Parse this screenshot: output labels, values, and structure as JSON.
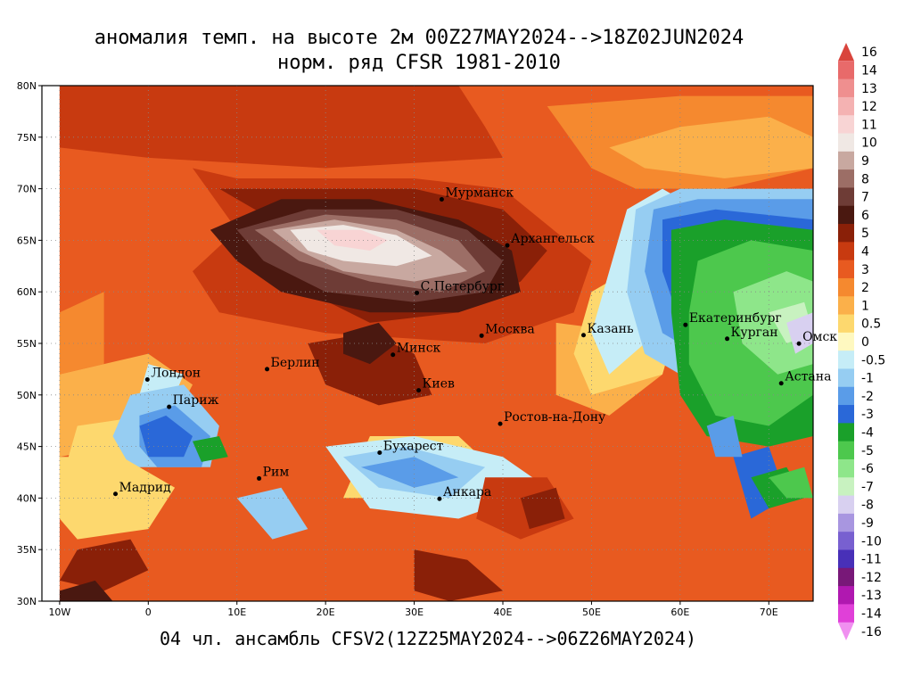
{
  "title_line1": "аномалия темп. на высоте 2м 00Z27MAY2024-->18Z02JUN2024",
  "title_line2": "норм. ряд CFSR 1981-2010",
  "footer": "04 чл. ансамбль CFSV2(12Z25MAY2024-->06Z26MAY2024)",
  "lat_labels": [
    "80N",
    "75N",
    "70N",
    "65N",
    "60N",
    "55N",
    "50N",
    "45N",
    "40N",
    "35N",
    "30N"
  ],
  "lon_labels": [
    "10W",
    "0",
    "10E",
    "20E",
    "30E",
    "40E",
    "50E",
    "60E",
    "70E"
  ],
  "cities": [
    {
      "name": "Мурманск",
      "lon": 33.1,
      "lat": 68.97
    },
    {
      "name": "Архангельск",
      "lon": 40.5,
      "lat": 64.5
    },
    {
      "name": "С.Петербург",
      "lon": 30.3,
      "lat": 59.9
    },
    {
      "name": "Москва",
      "lon": 37.6,
      "lat": 55.75
    },
    {
      "name": "Казань",
      "lon": 49.1,
      "lat": 55.8
    },
    {
      "name": "Екатеринбург",
      "lon": 60.6,
      "lat": 56.8
    },
    {
      "name": "Курган",
      "lon": 65.3,
      "lat": 55.45
    },
    {
      "name": "Омск",
      "lon": 73.4,
      "lat": 54.98
    },
    {
      "name": "Астана",
      "lon": 71.4,
      "lat": 51.13
    },
    {
      "name": "Минск",
      "lon": 27.6,
      "lat": 53.9
    },
    {
      "name": "Берлин",
      "lon": 13.4,
      "lat": 52.5
    },
    {
      "name": "Лондон",
      "lon": -0.1,
      "lat": 51.5
    },
    {
      "name": "Париж",
      "lon": 2.35,
      "lat": 48.85
    },
    {
      "name": "Киев",
      "lon": 30.5,
      "lat": 50.45
    },
    {
      "name": "Ростов-на-Дону",
      "lon": 39.7,
      "lat": 47.2
    },
    {
      "name": "Бухарест",
      "lon": 26.1,
      "lat": 44.4
    },
    {
      "name": "Мадрид",
      "lon": -3.7,
      "lat": 40.4
    },
    {
      "name": "Рим",
      "lon": 12.5,
      "lat": 41.9
    },
    {
      "name": "Анкара",
      "lon": 32.85,
      "lat": 39.93
    }
  ],
  "colorbar": {
    "labels": [
      "16",
      "14",
      "13",
      "12",
      "11",
      "10",
      "9",
      "8",
      "7",
      "6",
      "5",
      "4",
      "3",
      "2",
      "1",
      "0.5",
      "0",
      "-0.5",
      "-1",
      "-2",
      "-3",
      "-4",
      "-5",
      "-6",
      "-7",
      "-8",
      "-9",
      "-10",
      "-11",
      "-12",
      "-13",
      "-14",
      "-16"
    ],
    "colors": [
      "#d9443c",
      "#e86a6a",
      "#ef8f8f",
      "#f4b2b2",
      "#f8d4d4",
      "#f0e8e4",
      "#c8a8a0",
      "#9c6e66",
      "#6e3c36",
      "#4a1810",
      "#8a2008",
      "#c83a10",
      "#e85a20",
      "#f5892f",
      "#fbb04a",
      "#fdd86e",
      "#fef8c0",
      "#c6edf7",
      "#96cdf2",
      "#5a9ce8",
      "#2a68d8",
      "#1aa02a",
      "#4dc84d",
      "#8ee68a",
      "#c8f2c0",
      "#d8d0f0",
      "#a896e0",
      "#7860d0",
      "#4830b8",
      "#781878",
      "#b018b0",
      "#e040d8",
      "#f090f0"
    ]
  },
  "regions": [
    {
      "value": 3,
      "points": [
        [
          -10,
          80
        ],
        [
          75,
          80
        ],
        [
          75,
          30
        ],
        [
          -10,
          30
        ]
      ]
    },
    {
      "value": 4,
      "points": [
        [
          -10,
          80
        ],
        [
          35,
          80
        ],
        [
          38,
          76
        ],
        [
          40,
          73
        ],
        [
          20,
          72
        ],
        [
          0,
          73
        ],
        [
          -10,
          74
        ]
      ]
    },
    {
      "value": 4,
      "points": [
        [
          5,
          72
        ],
        [
          10,
          66
        ],
        [
          5,
          62
        ],
        [
          8,
          58
        ],
        [
          20,
          56
        ],
        [
          38,
          55
        ],
        [
          48,
          58
        ],
        [
          50,
          63
        ],
        [
          40,
          70
        ],
        [
          30,
          71
        ],
        [
          20,
          71
        ],
        [
          10,
          71
        ]
      ]
    },
    {
      "value": 5,
      "points": [
        [
          8,
          70
        ],
        [
          14,
          67
        ],
        [
          18,
          60
        ],
        [
          25,
          57
        ],
        [
          35,
          58
        ],
        [
          42,
          61
        ],
        [
          45,
          64
        ],
        [
          40,
          68
        ],
        [
          30,
          70
        ],
        [
          20,
          70
        ]
      ]
    },
    {
      "value": 2,
      "points": [
        [
          -10,
          58
        ],
        [
          -5,
          60
        ],
        [
          -5,
          53
        ],
        [
          -10,
          52
        ]
      ]
    },
    {
      "value": 2,
      "points": [
        [
          45,
          78
        ],
        [
          60,
          79
        ],
        [
          75,
          79
        ],
        [
          75,
          72
        ],
        [
          65,
          70
        ],
        [
          55,
          70
        ],
        [
          50,
          72
        ]
      ]
    },
    {
      "value": 1,
      "points": [
        [
          52,
          74
        ],
        [
          60,
          76
        ],
        [
          70,
          77
        ],
        [
          75,
          75
        ],
        [
          75,
          72
        ],
        [
          65,
          71
        ],
        [
          56,
          72
        ]
      ]
    },
    {
      "value": 1,
      "points": [
        [
          -10,
          52
        ],
        [
          0,
          54
        ],
        [
          5,
          51
        ],
        [
          2,
          46
        ],
        [
          -10,
          44
        ]
      ]
    },
    {
      "value": 0.5,
      "points": [
        [
          -8,
          47
        ],
        [
          0,
          48
        ],
        [
          3,
          44
        ],
        [
          -5,
          42
        ],
        [
          -9,
          44
        ]
      ]
    },
    {
      "value": -0.5,
      "points": [
        [
          0,
          53
        ],
        [
          4,
          52
        ],
        [
          3,
          50
        ],
        [
          -1,
          50
        ]
      ]
    },
    {
      "value": -1,
      "points": [
        [
          -2,
          50
        ],
        [
          4,
          51
        ],
        [
          8,
          47
        ],
        [
          7,
          43
        ],
        [
          -2,
          43
        ],
        [
          -4,
          46
        ]
      ]
    },
    {
      "value": -2,
      "points": [
        [
          -1,
          48
        ],
        [
          3,
          49
        ],
        [
          7,
          46
        ],
        [
          6,
          43
        ],
        [
          1,
          43
        ],
        [
          -1,
          45
        ]
      ]
    },
    {
      "value": -3,
      "points": [
        [
          -1,
          47
        ],
        [
          2,
          48
        ],
        [
          5,
          46
        ],
        [
          4,
          44
        ],
        [
          0,
          44
        ]
      ]
    },
    {
      "value": -4,
      "points": [
        [
          5,
          45.5
        ],
        [
          8,
          46
        ],
        [
          9,
          44
        ],
        [
          6,
          43.5
        ]
      ]
    },
    {
      "value": 0.5,
      "points": [
        [
          25,
          46
        ],
        [
          35,
          46
        ],
        [
          40,
          42
        ],
        [
          30,
          40
        ],
        [
          22,
          40
        ]
      ]
    },
    {
      "value": -0.5,
      "points": [
        [
          20,
          45
        ],
        [
          30,
          46
        ],
        [
          40,
          44
        ],
        [
          45,
          41
        ],
        [
          35,
          38
        ],
        [
          25,
          39
        ]
      ]
    },
    {
      "value": -1,
      "points": [
        [
          22,
          44
        ],
        [
          29,
          45
        ],
        [
          38,
          43
        ],
        [
          34,
          40
        ],
        [
          26,
          41
        ]
      ]
    },
    {
      "value": -2,
      "points": [
        [
          24,
          43
        ],
        [
          30,
          44
        ],
        [
          35,
          42
        ],
        [
          30,
          41
        ]
      ]
    },
    {
      "value": -1,
      "points": [
        [
          10,
          40
        ],
        [
          15,
          41
        ],
        [
          18,
          37
        ],
        [
          14,
          36
        ]
      ]
    },
    {
      "value": 0.5,
      "points": [
        [
          -10,
          44
        ],
        [
          -3,
          44
        ],
        [
          3,
          41
        ],
        [
          0,
          37
        ],
        [
          -8,
          36
        ],
        [
          -10,
          38
        ]
      ]
    },
    {
      "value": 1,
      "points": [
        [
          46,
          57
        ],
        [
          55,
          56
        ],
        [
          58,
          52
        ],
        [
          52,
          48
        ],
        [
          46,
          50
        ]
      ]
    },
    {
      "value": 0.5,
      "points": [
        [
          50,
          60
        ],
        [
          58,
          64
        ],
        [
          60,
          58
        ],
        [
          58,
          52
        ],
        [
          50,
          50
        ],
        [
          48,
          54
        ]
      ]
    },
    {
      "value": -0.5,
      "points": [
        [
          54,
          68
        ],
        [
          58,
          70
        ],
        [
          62,
          68
        ],
        [
          60,
          60
        ],
        [
          56,
          55
        ],
        [
          52,
          52
        ],
        [
          50,
          56
        ],
        [
          52,
          62
        ]
      ]
    },
    {
      "value": -1,
      "points": [
        [
          55,
          68
        ],
        [
          60,
          70
        ],
        [
          75,
          70
        ],
        [
          75,
          58
        ],
        [
          68,
          56
        ],
        [
          60,
          52
        ],
        [
          56,
          54
        ],
        [
          54,
          60
        ]
      ]
    },
    {
      "value": -2,
      "points": [
        [
          57,
          68
        ],
        [
          62,
          69
        ],
        [
          75,
          69
        ],
        [
          75,
          59
        ],
        [
          70,
          57
        ],
        [
          62,
          54
        ],
        [
          58,
          56
        ],
        [
          56,
          62
        ]
      ]
    },
    {
      "value": -3,
      "points": [
        [
          58,
          67
        ],
        [
          64,
          68
        ],
        [
          75,
          67
        ],
        [
          75,
          60
        ],
        [
          70,
          58
        ],
        [
          64,
          55
        ],
        [
          60,
          57
        ],
        [
          58,
          62
        ]
      ]
    },
    {
      "value": -4,
      "points": [
        [
          59,
          66
        ],
        [
          65,
          67
        ],
        [
          75,
          66
        ],
        [
          75,
          46
        ],
        [
          70,
          45
        ],
        [
          63,
          46
        ],
        [
          60,
          50
        ],
        [
          59,
          58
        ]
      ]
    },
    {
      "value": -5,
      "points": [
        [
          62,
          63
        ],
        [
          68,
          65
        ],
        [
          75,
          64
        ],
        [
          75,
          50
        ],
        [
          70,
          47
        ],
        [
          64,
          48
        ],
        [
          61,
          53
        ],
        [
          61,
          58
        ]
      ]
    },
    {
      "value": -6,
      "points": [
        [
          66,
          60
        ],
        [
          72,
          62
        ],
        [
          75,
          61
        ],
        [
          75,
          53
        ],
        [
          71,
          52
        ],
        [
          67,
          55
        ]
      ]
    },
    {
      "value": -7,
      "points": [
        [
          70,
          58
        ],
        [
          74,
          59
        ],
        [
          75,
          56
        ],
        [
          72,
          55
        ]
      ]
    },
    {
      "value": -8,
      "points": [
        [
          72,
          57
        ],
        [
          75,
          58
        ],
        [
          75,
          55
        ],
        [
          73,
          54
        ]
      ]
    },
    {
      "value": -3,
      "points": [
        [
          66,
          44
        ],
        [
          70,
          45
        ],
        [
          72,
          40
        ],
        [
          68,
          38
        ]
      ]
    },
    {
      "value": -4,
      "points": [
        [
          68,
          42
        ],
        [
          72,
          43
        ],
        [
          74,
          40
        ],
        [
          70,
          39
        ]
      ]
    },
    {
      "value": -5,
      "points": [
        [
          70,
          42
        ],
        [
          74,
          43
        ],
        [
          75,
          40
        ],
        [
          72,
          40
        ]
      ]
    },
    {
      "value": -2,
      "points": [
        [
          63,
          47
        ],
        [
          66,
          48
        ],
        [
          67,
          44
        ],
        [
          64,
          44
        ]
      ]
    },
    {
      "value": 6,
      "points": [
        [
          7,
          66
        ],
        [
          15,
          69
        ],
        [
          25,
          69
        ],
        [
          35,
          67
        ],
        [
          41,
          64
        ],
        [
          42,
          60
        ],
        [
          35,
          58
        ],
        [
          25,
          58
        ],
        [
          15,
          60
        ],
        [
          10,
          63
        ]
      ]
    },
    {
      "value": 7,
      "points": [
        [
          10,
          66
        ],
        [
          18,
          68
        ],
        [
          28,
          68
        ],
        [
          36,
          66
        ],
        [
          40,
          63
        ],
        [
          38,
          60
        ],
        [
          30,
          59
        ],
        [
          20,
          60
        ],
        [
          13,
          63
        ]
      ]
    },
    {
      "value": 8,
      "points": [
        [
          12,
          66
        ],
        [
          20,
          67.5
        ],
        [
          28,
          67
        ],
        [
          35,
          65
        ],
        [
          38,
          62
        ],
        [
          33,
          60
        ],
        [
          25,
          61
        ],
        [
          17,
          63
        ]
      ]
    },
    {
      "value": 9,
      "points": [
        [
          14,
          66
        ],
        [
          21,
          67
        ],
        [
          28,
          66
        ],
        [
          33,
          64
        ],
        [
          36,
          62
        ],
        [
          30,
          61
        ],
        [
          22,
          62
        ],
        [
          17,
          64
        ]
      ]
    },
    {
      "value": 10,
      "points": [
        [
          16,
          66
        ],
        [
          22,
          66.5
        ],
        [
          28,
          65.5
        ],
        [
          32,
          63.5
        ],
        [
          28,
          62.5
        ],
        [
          22,
          63
        ],
        [
          18,
          64
        ]
      ]
    },
    {
      "value": 11,
      "points": [
        [
          19,
          66
        ],
        [
          24,
          66
        ],
        [
          27,
          65
        ],
        [
          25,
          64
        ],
        [
          21,
          64.5
        ]
      ]
    },
    {
      "value": 5,
      "points": [
        [
          18,
          55
        ],
        [
          25,
          56
        ],
        [
          30,
          54
        ],
        [
          32,
          50
        ],
        [
          26,
          49
        ],
        [
          20,
          51
        ]
      ]
    },
    {
      "value": 6,
      "points": [
        [
          22,
          56
        ],
        [
          26,
          57
        ],
        [
          28,
          55
        ],
        [
          25,
          53
        ],
        [
          22,
          54
        ]
      ]
    },
    {
      "value": 5,
      "points": [
        [
          -8,
          35
        ],
        [
          -2,
          36
        ],
        [
          0,
          33
        ],
        [
          -5,
          31
        ],
        [
          -10,
          32
        ]
      ]
    },
    {
      "value": 6,
      "points": [
        [
          -10,
          31
        ],
        [
          -6,
          32
        ],
        [
          -4,
          30
        ],
        [
          -10,
          30
        ]
      ]
    },
    {
      "value": 5,
      "points": [
        [
          30,
          35
        ],
        [
          36,
          34
        ],
        [
          40,
          31
        ],
        [
          34,
          30
        ],
        [
          30,
          31
        ]
      ]
    },
    {
      "value": 4,
      "points": [
        [
          38,
          42
        ],
        [
          45,
          42
        ],
        [
          48,
          38
        ],
        [
          42,
          36
        ],
        [
          37,
          38
        ]
      ]
    },
    {
      "value": 5,
      "points": [
        [
          42,
          40
        ],
        [
          46,
          41
        ],
        [
          47,
          38
        ],
        [
          43,
          37
        ]
      ]
    }
  ]
}
